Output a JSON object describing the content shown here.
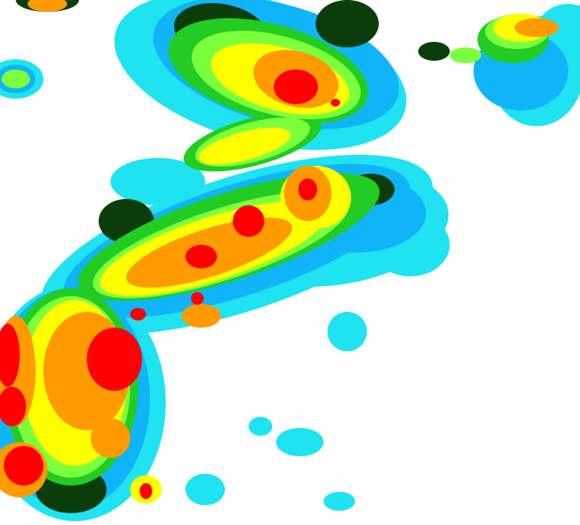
{
  "image": {
    "kind": "false-color weather imagery",
    "background_color": "#ffffff",
    "palette": {
      "light_cyan": "#1fe3f0",
      "sky_blue": "#10b4f8",
      "dark_green": "#0b3d0b",
      "green": "#22cc22",
      "lime": "#7cff3c",
      "yellow": "#ffff00",
      "orange": "#ff9a00",
      "red": "#ff0000"
    }
  }
}
